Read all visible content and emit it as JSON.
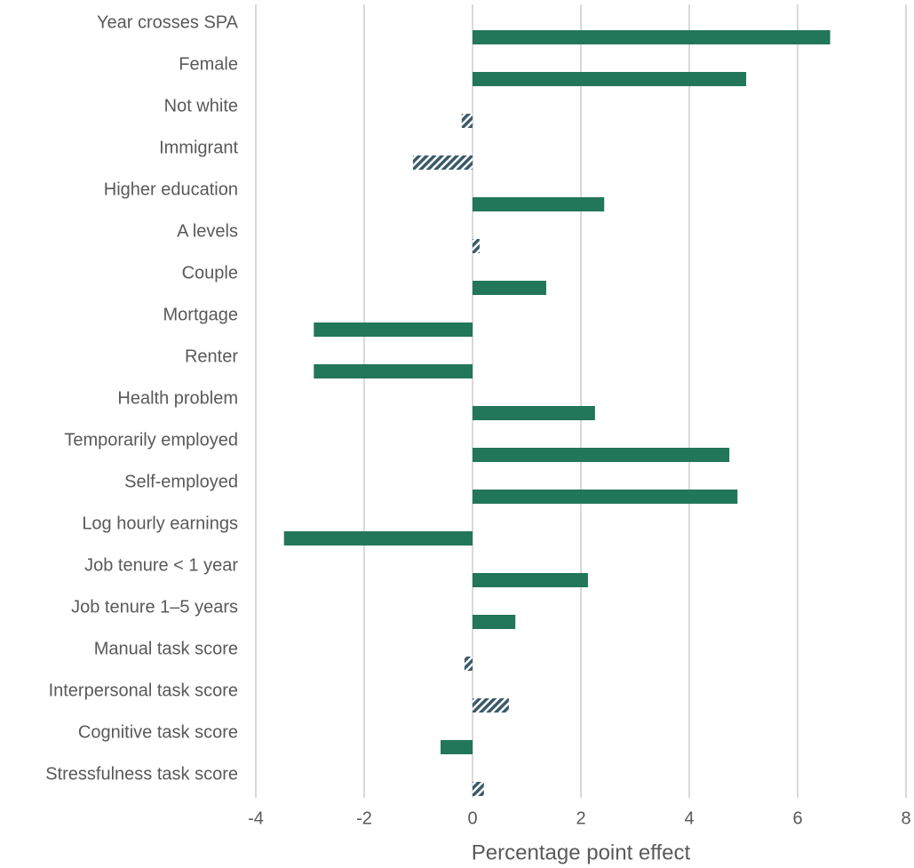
{
  "chart_data": {
    "type": "hbar",
    "categories": [
      "Year crosses SPA",
      "Female",
      "Not white",
      "Immigrant",
      "Higher education",
      "A levels",
      "Couple",
      "Mortgage",
      "Renter",
      "Health problem",
      "Temporarily employed",
      "Self-employed",
      "Log hourly earnings",
      "Job tenure < 1 year",
      "Job tenure 1–5 years",
      "Manual task score",
      "Interpersonal task score",
      "Cognitive task score",
      "Stressfulness task score"
    ],
    "values": [
      6.6,
      5.05,
      -0.2,
      -1.1,
      2.43,
      0.13,
      1.36,
      -2.93,
      -2.93,
      2.26,
      4.74,
      4.89,
      -3.48,
      2.13,
      0.79,
      -0.15,
      0.67,
      -0.59,
      0.21
    ],
    "hatched": [
      false,
      false,
      true,
      true,
      false,
      true,
      false,
      false,
      false,
      false,
      false,
      false,
      false,
      false,
      false,
      true,
      true,
      false,
      true
    ],
    "color": "#22765a",
    "hatch_color": "#3b5a6a",
    "xlim": [
      -4,
      8
    ],
    "xticks": [
      -4,
      -2,
      0,
      2,
      4,
      6,
      8
    ],
    "xlabel": "Percentage point effect",
    "grid": true
  }
}
